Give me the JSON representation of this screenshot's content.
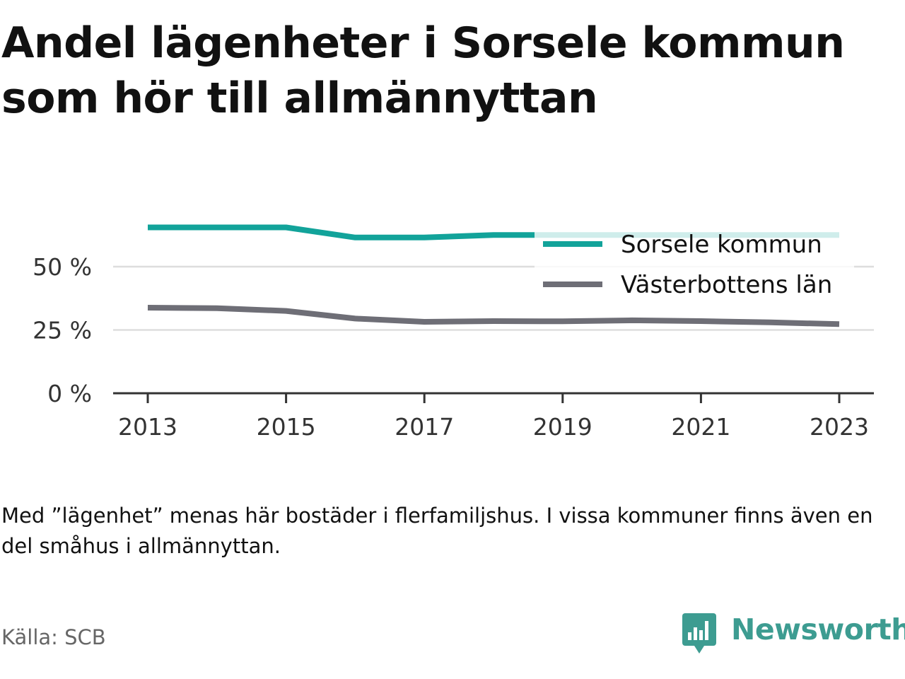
{
  "title": "Andel lägenheter i Sorsele kommun som hör till allmännyttan",
  "note": "Med ”lägenhet” menas här bostäder i flerfamiljshus. I vissa kommuner finns även en del småhus i allmännyttan.",
  "source": "Källa: SCB",
  "brand": {
    "name": "Newsworthy",
    "logo_icon": "newsworthy-logo-icon",
    "color": "#3d9c91"
  },
  "chart_data": {
    "type": "line",
    "x": [
      2013,
      2014,
      2015,
      2016,
      2017,
      2018,
      2019,
      2020,
      2021,
      2022,
      2023
    ],
    "series": [
      {
        "name": "Sorsele kommun",
        "color": "#12a39a",
        "values": [
          65.5,
          65.5,
          65.5,
          61.5,
          61.5,
          62.5,
          62.5,
          62.5,
          62.5,
          62.5,
          62.5
        ]
      },
      {
        "name": "Västerbottens län",
        "color": "#6e6e76",
        "values": [
          33.8,
          33.6,
          32.5,
          29.5,
          28.2,
          28.5,
          28.4,
          28.8,
          28.5,
          28.0,
          27.3
        ]
      }
    ],
    "xticks": [
      "2013",
      "2015",
      "2017",
      "2019",
      "2021",
      "2023"
    ],
    "yticks": [
      "0 %",
      "25 %",
      "50 %"
    ],
    "ylim": [
      0,
      70
    ],
    "grid": true,
    "legend_position": "top-right"
  }
}
